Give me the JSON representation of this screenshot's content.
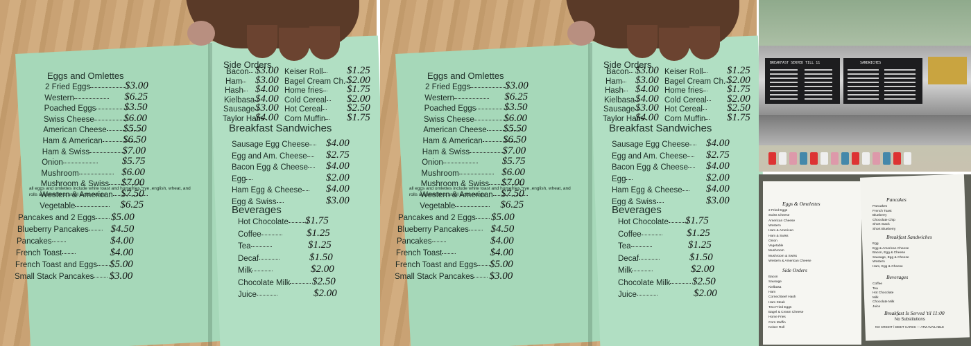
{
  "menu": {
    "eggs": {
      "title": "Eggs and Omlettes",
      "items": [
        {
          "name": "2 Fried Eggs",
          "price": "$3.00"
        },
        {
          "name": "Western",
          "price": "$6.25"
        },
        {
          "name": "Poached Eggs",
          "price": "$3.50"
        },
        {
          "name": "Swiss Cheese",
          "price": "$6.00"
        },
        {
          "name": "American Cheese",
          "price": "$5.50"
        },
        {
          "name": "Ham & American",
          "price": "$6.50"
        },
        {
          "name": "Ham & Swiss",
          "price": "$7.00"
        },
        {
          "name": "Onion",
          "price": "$5.75"
        },
        {
          "name": "Mushroom",
          "price": "$6.00"
        },
        {
          "name": "Mushroom & Swiss",
          "price": "$7.00"
        },
        {
          "name": "Western & American",
          "price": "$7.50"
        },
        {
          "name": "Vegetable",
          "price": "$6.25"
        }
      ],
      "note": "all eggs and omlettes include white toast and homefries,*rye ,english, wheat, and rolls available for a small extra charge."
    },
    "pancakes": {
      "items": [
        {
          "name": "Pancakes and 2 Eggs",
          "price": "$5.00"
        },
        {
          "name": "Blueberry Pancakes",
          "price": "$4.50"
        },
        {
          "name": "Pancakes",
          "price": "$4.00"
        },
        {
          "name": "French Toast",
          "price": "$4.00"
        },
        {
          "name": "French Toast and Eggs",
          "price": "$5.00"
        },
        {
          "name": "Small Stack Pancakes",
          "price": "$3.00"
        }
      ]
    },
    "side_orders": {
      "title": "Side Orders",
      "items": [
        {
          "name": "Bacon",
          "price": "$3.00"
        },
        {
          "name": "Ham",
          "price": "$3.00"
        },
        {
          "name": "Hash",
          "price": "$4.00"
        },
        {
          "name": "Kielbasa",
          "price": "$4.00"
        },
        {
          "name": "Sausage",
          "price": "$3.00"
        },
        {
          "name": "Taylor Ham",
          "price": "$4.00"
        },
        {
          "name": "Keiser Roll",
          "price": "$1.25"
        },
        {
          "name": "Bagel Cream Ch.",
          "price": "$2.00"
        },
        {
          "name": "Home fries",
          "price": "$1.75"
        },
        {
          "name": "Cold Cereal",
          "price": "$2.00"
        },
        {
          "name": "Hot Cereal",
          "price": "$2.50"
        },
        {
          "name": "Corn Muffin",
          "price": "$1.75"
        }
      ]
    },
    "sandwiches": {
      "title": "Breakfast Sandwiches",
      "items": [
        {
          "name": "Sausage Egg Cheese",
          "price": "$4.00"
        },
        {
          "name": "Egg and Am. Cheese",
          "price": "$2.75"
        },
        {
          "name": "Bacon Egg & Cheese",
          "price": "$4.00"
        },
        {
          "name": "Egg",
          "price": "$2.00"
        },
        {
          "name": "Ham Egg & Cheese",
          "price": "$4.00"
        },
        {
          "name": "Egg & Swiss",
          "price": "$3.00"
        }
      ]
    },
    "beverages": {
      "title": "Beverages",
      "items": [
        {
          "name": "Hot Chocolate",
          "price": "$1.75"
        },
        {
          "name": "Coffee",
          "price": "$1.25"
        },
        {
          "name": "Tea",
          "price": "$1.25"
        },
        {
          "name": "Decaf",
          "price": "$1.50"
        },
        {
          "name": "Milk",
          "price": "$2.00"
        },
        {
          "name": "Chocolate Milk",
          "price": "$2.50"
        },
        {
          "name": "Juice",
          "price": "$2.00"
        }
      ]
    }
  },
  "board": {
    "left_heading": "BREAKFAST SERVED TILL 11",
    "right_heading": "SANDWICHES"
  },
  "printed_menu": {
    "sections": [
      {
        "title": "Eggs & Omelettes",
        "items": [
          "2 Fried Eggs",
          "Swiss Cheese",
          "American Cheese",
          "Western",
          "Ham & American",
          "Ham & Swiss",
          "Onion",
          "Vegetable",
          "Mushroom",
          "Mushroom & Swiss",
          "Western & American Cheese"
        ]
      },
      {
        "title": "Side Orders",
        "items": [
          "Bacon",
          "Sausage",
          "Kielbasa",
          "Ham",
          "Corned Beef Hash",
          "Ham Steak",
          "Two Fried Eggs",
          "Bagel & Cream Cheese",
          "Home Fries",
          "Corn Muffin",
          "Keiser Roll"
        ]
      },
      {
        "title": "Pancakes",
        "items": [
          "Pancakes",
          "French Toast",
          "Blueberry",
          "Chocolate Chip",
          "Short Stack",
          "Short Blueberry"
        ]
      },
      {
        "title": "Breakfast Sandwiches",
        "items": [
          "Egg",
          "Egg & American Cheese",
          "Bacon, Egg & Cheese",
          "Sausage, Egg & Cheese",
          "Western",
          "Ham, Egg & Cheese"
        ]
      },
      {
        "title": "Beverages",
        "items": [
          "Coffee",
          "Tea",
          "Hot Chocolate",
          "Milk",
          "Chocolate Milk",
          "Juice"
        ]
      }
    ],
    "footer": "Breakfast Is Served 'til 11:00",
    "footer2": "No Substitutions",
    "notice": "NO CREDIT / DEBIT CARDS — ATM AVAILABLE"
  }
}
